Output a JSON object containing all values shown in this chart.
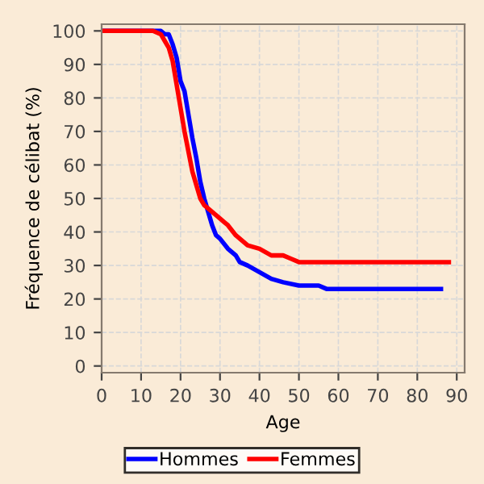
{
  "chart_data": {
    "type": "line",
    "xlabel": "Age",
    "ylabel": "Fréquence de célibat (%)",
    "xlim": [
      0,
      92
    ],
    "ylim": [
      -2,
      102
    ],
    "xticks": [
      0,
      10,
      20,
      30,
      40,
      50,
      60,
      70,
      80,
      90
    ],
    "yticks": [
      0,
      10,
      20,
      30,
      40,
      50,
      60,
      70,
      80,
      90,
      100
    ],
    "grid": true,
    "legend": "bottom",
    "marker": "none",
    "line_style": "solid",
    "series": [
      {
        "name": "Hommes",
        "color": "#0000ff",
        "x": [
          0,
          15,
          16,
          17,
          18,
          19,
          20,
          21,
          22,
          23,
          24,
          25,
          26,
          27,
          28,
          29,
          30,
          32,
          34,
          35,
          37,
          40,
          43,
          46,
          50,
          55,
          57,
          86
        ],
        "values": [
          100,
          100,
          99,
          99,
          96,
          92,
          85,
          82,
          75,
          68,
          62,
          55,
          50,
          46,
          42,
          39,
          38,
          35,
          33,
          31,
          30,
          28,
          26,
          25,
          24,
          24,
          23,
          23
        ]
      },
      {
        "name": "Femmes",
        "color": "#ff0000",
        "x": [
          0,
          10,
          13,
          15,
          16,
          17,
          18,
          19,
          20,
          21,
          22,
          23,
          24,
          25,
          26,
          28,
          30,
          31,
          32,
          34,
          37,
          40,
          43,
          46,
          48,
          50,
          55,
          88
        ],
        "values": [
          100,
          100,
          100,
          99,
          97,
          95,
          91,
          84,
          77,
          70,
          64,
          58,
          54,
          50,
          48,
          46,
          44,
          43,
          42,
          39,
          36,
          35,
          33,
          33,
          32,
          31,
          31,
          31
        ]
      }
    ]
  }
}
